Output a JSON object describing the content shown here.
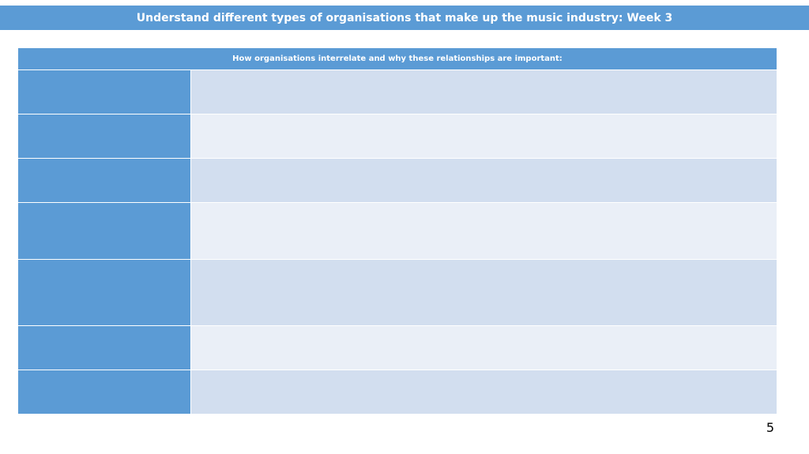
{
  "header": {
    "title": "Understand different types of organisations that make up the music industry: Week 3"
  },
  "table": {
    "header": "How organisations interrelate and why these relationships are important:"
  },
  "page_number": "5"
}
